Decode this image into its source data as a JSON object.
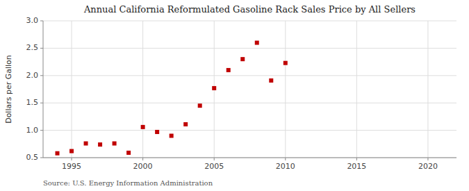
{
  "chart_data": {
    "type": "scatter",
    "title": "Annual California Reformulated Gasoline Rack Sales Price by All Sellers",
    "ylabel": "Dollars per Gallon",
    "source": "Source: U.S. Energy Information Administration",
    "x": [
      1994,
      1995,
      1996,
      1997,
      1998,
      1999,
      2000,
      2001,
      2002,
      2003,
      2004,
      2005,
      2006,
      2007,
      2008,
      2009,
      2010
    ],
    "values": [
      0.58,
      0.62,
      0.76,
      0.74,
      0.76,
      0.59,
      1.06,
      0.97,
      0.9,
      1.11,
      1.45,
      1.77,
      2.1,
      2.3,
      2.6,
      1.91,
      2.23
    ],
    "color": "#c00000",
    "marker": "square",
    "grid": true,
    "xlim": [
      1993,
      2022
    ],
    "ylim": [
      0.5,
      3.0
    ],
    "xticks": [
      1995,
      2000,
      2005,
      2010,
      2015,
      2020
    ],
    "yticks": [
      0.5,
      {
        "value": 1.0,
        "label": "1.0"
      },
      1.5,
      {
        "value": 2.0,
        "label": "2.0"
      },
      2.5,
      {
        "value": 3.0,
        "label": "3.0"
      }
    ]
  }
}
